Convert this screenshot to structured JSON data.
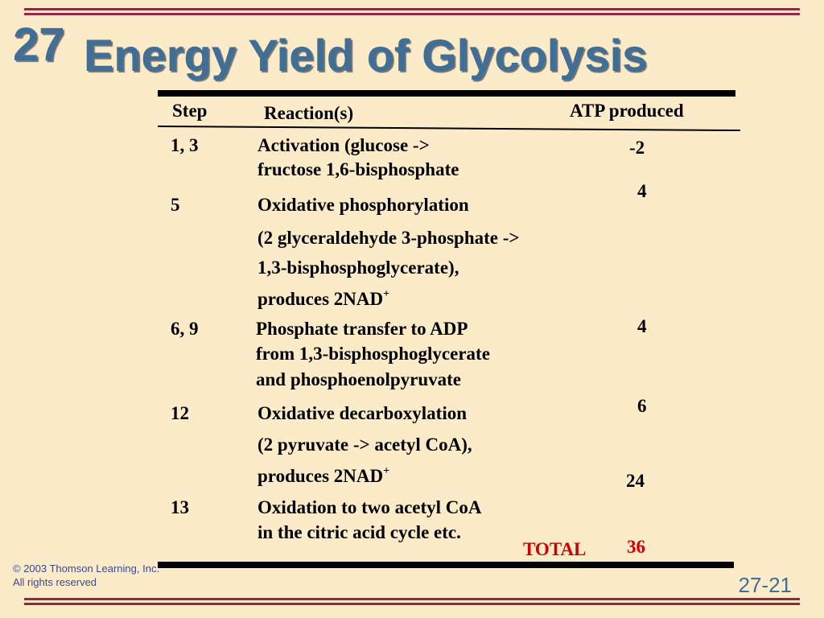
{
  "slide": {
    "chapter": "27",
    "title": "Energy Yield of Glycolysis",
    "page_number": "27-21",
    "copyright_line1": "© 2003 Thomson Learning, Inc.",
    "copyright_line2": "All rights reserved"
  },
  "table": {
    "headers": {
      "step": "Step",
      "reaction": "Reaction(s)",
      "atp": "ATP produced"
    },
    "rows": [
      {
        "step": "1, 3",
        "reaction_lines": [
          "Activation (glucose ->",
          "fructose 1,6-bisphosphate"
        ],
        "atp": "-2"
      },
      {
        "step": "5",
        "reaction_lines": [
          "Oxidative phosphorylation",
          "(2 glyceraldehyde 3-phosphate ->",
          "1,3-bisphosphoglycerate),",
          "produces 2NAD"
        ],
        "superscript": "+",
        "atp": "4"
      },
      {
        "step": "6, 9",
        "reaction_lines": [
          "Phosphate transfer to ADP",
          "from 1,3-bisphosphoglycerate",
          "and phosphoenolpyruvate"
        ],
        "atp": "4"
      },
      {
        "step": "12",
        "reaction_lines": [
          "Oxidative decarboxylation",
          "(2 pyruvate -> acetyl CoA),",
          "produces 2NAD"
        ],
        "superscript": "+",
        "atp": "6"
      },
      {
        "step": "13",
        "reaction_lines": [
          "Oxidation to two acetyl CoA",
          "in the citric acid cycle etc."
        ],
        "atp": "24"
      }
    ],
    "total_label": "TOTAL",
    "total_value": "36"
  },
  "colors": {
    "background": "#fcebc9",
    "title": "#3f6e97",
    "frame_lines": "#8e2a43",
    "total": "#cc0000"
  }
}
